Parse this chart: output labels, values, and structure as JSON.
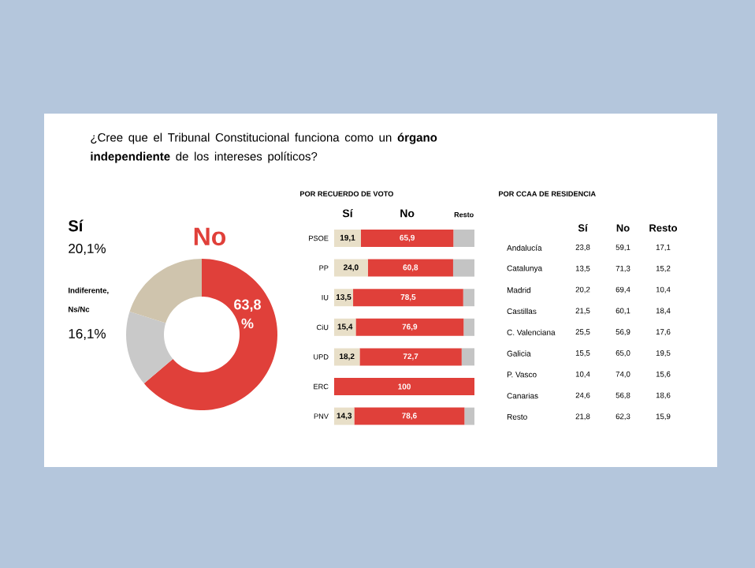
{
  "chart_data": [
    {
      "type": "donut",
      "title": "¿Cree que el Tribunal Constitucional funciona como un **órgano independiente** de los intereses políticos?",
      "categories": [
        "No",
        "Indiferente, Ns/Nc",
        "Sí"
      ],
      "values": [
        63.8,
        16.1,
        20.1
      ],
      "colors": [
        "#e0403a",
        "#c9c9c9",
        "#cfc4ad"
      ],
      "value_labels": [
        "63,8 %",
        "16,1%",
        "20,1%"
      ]
    },
    {
      "type": "bar",
      "orientation": "horizontal",
      "stacked": true,
      "title": "POR RECUERDO DE VOTO",
      "categories": [
        "PSOE",
        "PP",
        "IU",
        "CiU",
        "UPD",
        "ERC",
        "PNV"
      ],
      "tick_labels": "y",
      "series": [
        {
          "name": "Sí",
          "color": "#e8dfc8",
          "values": [
            19.1,
            24.0,
            13.5,
            15.4,
            18.2,
            0,
            14.3
          ],
          "value_labels": [
            "19,1",
            "24,0",
            "13,5",
            "15,4",
            "18,2",
            null,
            "14,3"
          ]
        },
        {
          "name": "No",
          "color": "#e0403a",
          "values": [
            65.9,
            60.8,
            78.5,
            76.9,
            72.7,
            100,
            78.6
          ],
          "value_labels": [
            "65,9",
            "60,8",
            "78,5",
            "76,9",
            "72,7",
            "100",
            "78,6"
          ]
        },
        {
          "name": "Resto",
          "color": "#c4c4c4",
          "values": [
            15.0,
            15.2,
            8.0,
            7.7,
            9.1,
            0,
            7.1
          ]
        }
      ]
    },
    {
      "type": "other",
      "title": "POR CCAA DE RESIDENCIA",
      "categories": [
        "Sí",
        "No",
        "Resto"
      ],
      "y_categories": [
        "Andalucía",
        "Catalunya",
        "Madrid",
        "Castillas",
        "C. Valenciana",
        "Galicia",
        "P. Vasco",
        "Canarias",
        "Resto"
      ],
      "cell_labels": [
        [
          "23,8",
          "59,1",
          "17,1"
        ],
        [
          "13,5",
          "71,3",
          "15,2"
        ],
        [
          "20,2",
          "69,4",
          "10,4"
        ],
        [
          "21,5",
          "60,1",
          "18,4"
        ],
        [
          "25,5",
          "56,9",
          "17,6"
        ],
        [
          "15,5",
          "65,0",
          "19,5"
        ],
        [
          "10,4",
          "74,0",
          "15,6"
        ],
        [
          "24,6",
          "56,8",
          "18,6"
        ],
        [
          "21,8",
          "62,3",
          "15,9"
        ]
      ]
    }
  ]
}
